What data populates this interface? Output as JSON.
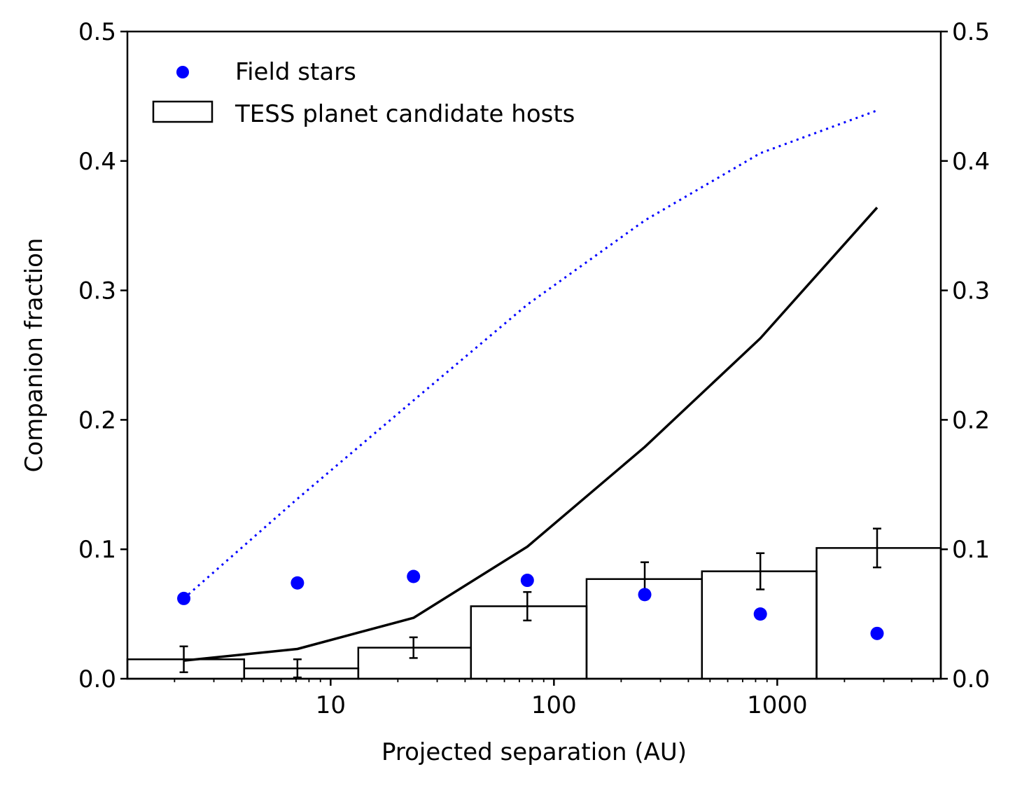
{
  "chart_data": {
    "type": "bar",
    "xlabel": "Projected separation (AU)",
    "ylabel": "Companion fraction",
    "xscale": "log",
    "xlim": [
      1.23,
      5400
    ],
    "ylim": [
      0,
      0.5
    ],
    "x_ticks": [
      {
        "value": 10,
        "label": "10"
      },
      {
        "value": 100,
        "label": "100"
      },
      {
        "value": 1000,
        "label": "1000"
      }
    ],
    "y_ticks": [
      {
        "value": 0.0,
        "label": "0.0"
      },
      {
        "value": 0.1,
        "label": "0.1"
      },
      {
        "value": 0.2,
        "label": "0.2"
      },
      {
        "value": 0.3,
        "label": "0.3"
      },
      {
        "value": 0.4,
        "label": "0.4"
      },
      {
        "value": 0.5,
        "label": "0.5"
      }
    ],
    "right_axis_mirrors_left": true,
    "legend": {
      "placement": "top-left",
      "entries": [
        {
          "label": "Field stars",
          "marker": "dot",
          "color": "#0000ff"
        },
        {
          "label": "TESS planet candidate hosts",
          "marker": "box",
          "color": "#000000"
        }
      ]
    },
    "histogram": {
      "name": "TESS planet candidate hosts",
      "bin_edges": [
        1.23,
        4.1,
        13.3,
        42.5,
        140,
        460,
        1500,
        5400
      ],
      "centers": [
        2.2,
        7.1,
        23.5,
        76,
        255,
        840,
        2800
      ],
      "values": [
        0.015,
        0.008,
        0.024,
        0.056,
        0.077,
        0.083,
        0.101
      ],
      "errors": [
        0.01,
        0.007,
        0.008,
        0.011,
        0.013,
        0.014,
        0.015
      ],
      "color": "#000000"
    },
    "field_stars": {
      "name": "Field stars",
      "x": [
        2.2,
        7.1,
        23.5,
        76,
        255,
        840,
        2800
      ],
      "y": [
        0.062,
        0.074,
        0.079,
        0.076,
        0.065,
        0.05,
        0.035
      ],
      "color": "#0000ff"
    },
    "solid_line": {
      "x": [
        2.2,
        7.1,
        23.5,
        76,
        255,
        840,
        2800
      ],
      "y": [
        0.014,
        0.023,
        0.047,
        0.102,
        0.179,
        0.263,
        0.364
      ],
      "color": "#000000"
    },
    "dotted_line": {
      "x": [
        2.2,
        7.1,
        23.5,
        76,
        255,
        840,
        2800
      ],
      "y": [
        0.062,
        0.139,
        0.215,
        0.289,
        0.354,
        0.406,
        0.439
      ],
      "color": "#0000ff"
    }
  }
}
